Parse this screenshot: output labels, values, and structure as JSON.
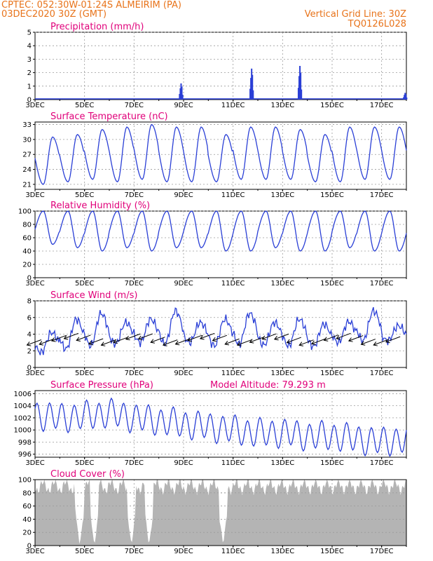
{
  "header": {
    "line1_left": "CPTEC:   052:30W-01:24S   ALMEIRIM (PA)",
    "line2_left": "03DEC2020 30Z (GMT)",
    "line1_right": "Vertical Grid Line: 30Z",
    "line2_right": "TQ0126L028"
  },
  "colors": {
    "header": "#e8731a",
    "panel_title": "#e0007a",
    "series": "#2a3fd6",
    "cloud": "#b4b4b4",
    "wind_barb": "#000000"
  },
  "x_axis": {
    "start_label": "3DEC",
    "tick_labels": [
      "3DEC",
      "5DEC",
      "7DEC",
      "9DEC",
      "11DEC",
      "13DEC",
      "15DEC",
      "17DEC"
    ],
    "day_range": [
      3,
      18
    ]
  },
  "chart_data": [
    {
      "type": "bar",
      "title": "Precipitation (mm/h)",
      "ylim": [
        0,
        5
      ],
      "yticks": [
        0,
        1,
        2,
        3,
        4,
        5
      ],
      "grid": true,
      "events": [
        {
          "day": 8.9,
          "value": 1.2
        },
        {
          "day": 11.75,
          "value": 2.3
        },
        {
          "day": 13.7,
          "value": 2.5
        },
        {
          "day": 17.95,
          "value": 0.5
        }
      ]
    },
    {
      "type": "line",
      "title": "Surface Temperature (nC)",
      "ylim": [
        20,
        33.5
      ],
      "yticks": [
        21,
        24,
        27,
        30,
        33
      ],
      "grid": true,
      "daily_max": [
        30.5,
        31,
        32,
        32.5,
        33,
        32.5,
        32.5,
        31,
        32.5,
        32.5,
        32,
        31,
        32.5,
        32.5,
        32.5
      ],
      "daily_min": [
        21,
        21.5,
        22,
        21.5,
        22,
        21.5,
        21.5,
        21.5,
        22,
        22,
        22,
        21.5,
        21.5,
        22,
        22
      ]
    },
    {
      "type": "line",
      "title": "Relative Humidity (%)",
      "ylim": [
        0,
        100
      ],
      "yticks": [
        0,
        20,
        40,
        60,
        80,
        100
      ],
      "grid": true,
      "daily_min": [
        50,
        45,
        40,
        45,
        40,
        45,
        45,
        40,
        40,
        45,
        40,
        40,
        45,
        40,
        40
      ]
    },
    {
      "type": "line",
      "title": "Surface Wind (m/s)",
      "ylim": [
        0,
        8
      ],
      "yticks": [
        0,
        2,
        4,
        6,
        8
      ],
      "grid": true,
      "daily_max": [
        4.2,
        5.8,
        6.5,
        5.4,
        5.8,
        6.8,
        5.4,
        5.8,
        6.5,
        5.4,
        5.8,
        5.2,
        5.5,
        6.8,
        5.0
      ],
      "daily_min": [
        1.8,
        2.2,
        2.6,
        2.8,
        3.0,
        2.8,
        3.0,
        2.6,
        2.8,
        2.7,
        2.6,
        2.5,
        3.0,
        3.2,
        3.2
      ],
      "barbs": {
        "direction_deg": 60,
        "interval_hours": 12
      }
    },
    {
      "type": "line",
      "title": "Surface Pressure (hPa)",
      "subtitle": "Model Altitude: 79.293  m",
      "ylim": [
        995.5,
        1006.5
      ],
      "yticks": [
        996,
        998,
        1000,
        1002,
        1004,
        1006
      ],
      "grid": true,
      "trend": [
        1002.5,
        1002.0,
        1002.3,
        1002.8,
        1002.0,
        1001.5,
        1001.0,
        1000.5,
        1000.0,
        999.5,
        999.5,
        999.0,
        999.0,
        998.5,
        998.0,
        998.5
      ],
      "semidiurnal_amplitude": 2.2
    },
    {
      "type": "area",
      "title": "Cloud Cover (%)",
      "ylim": [
        0,
        100
      ],
      "yticks": [
        0,
        20,
        40,
        60,
        80,
        100
      ],
      "grid": true,
      "clear_days": [
        4.8,
        5.4,
        6.9,
        7.6,
        10.6
      ],
      "typical_cover": 90
    }
  ]
}
